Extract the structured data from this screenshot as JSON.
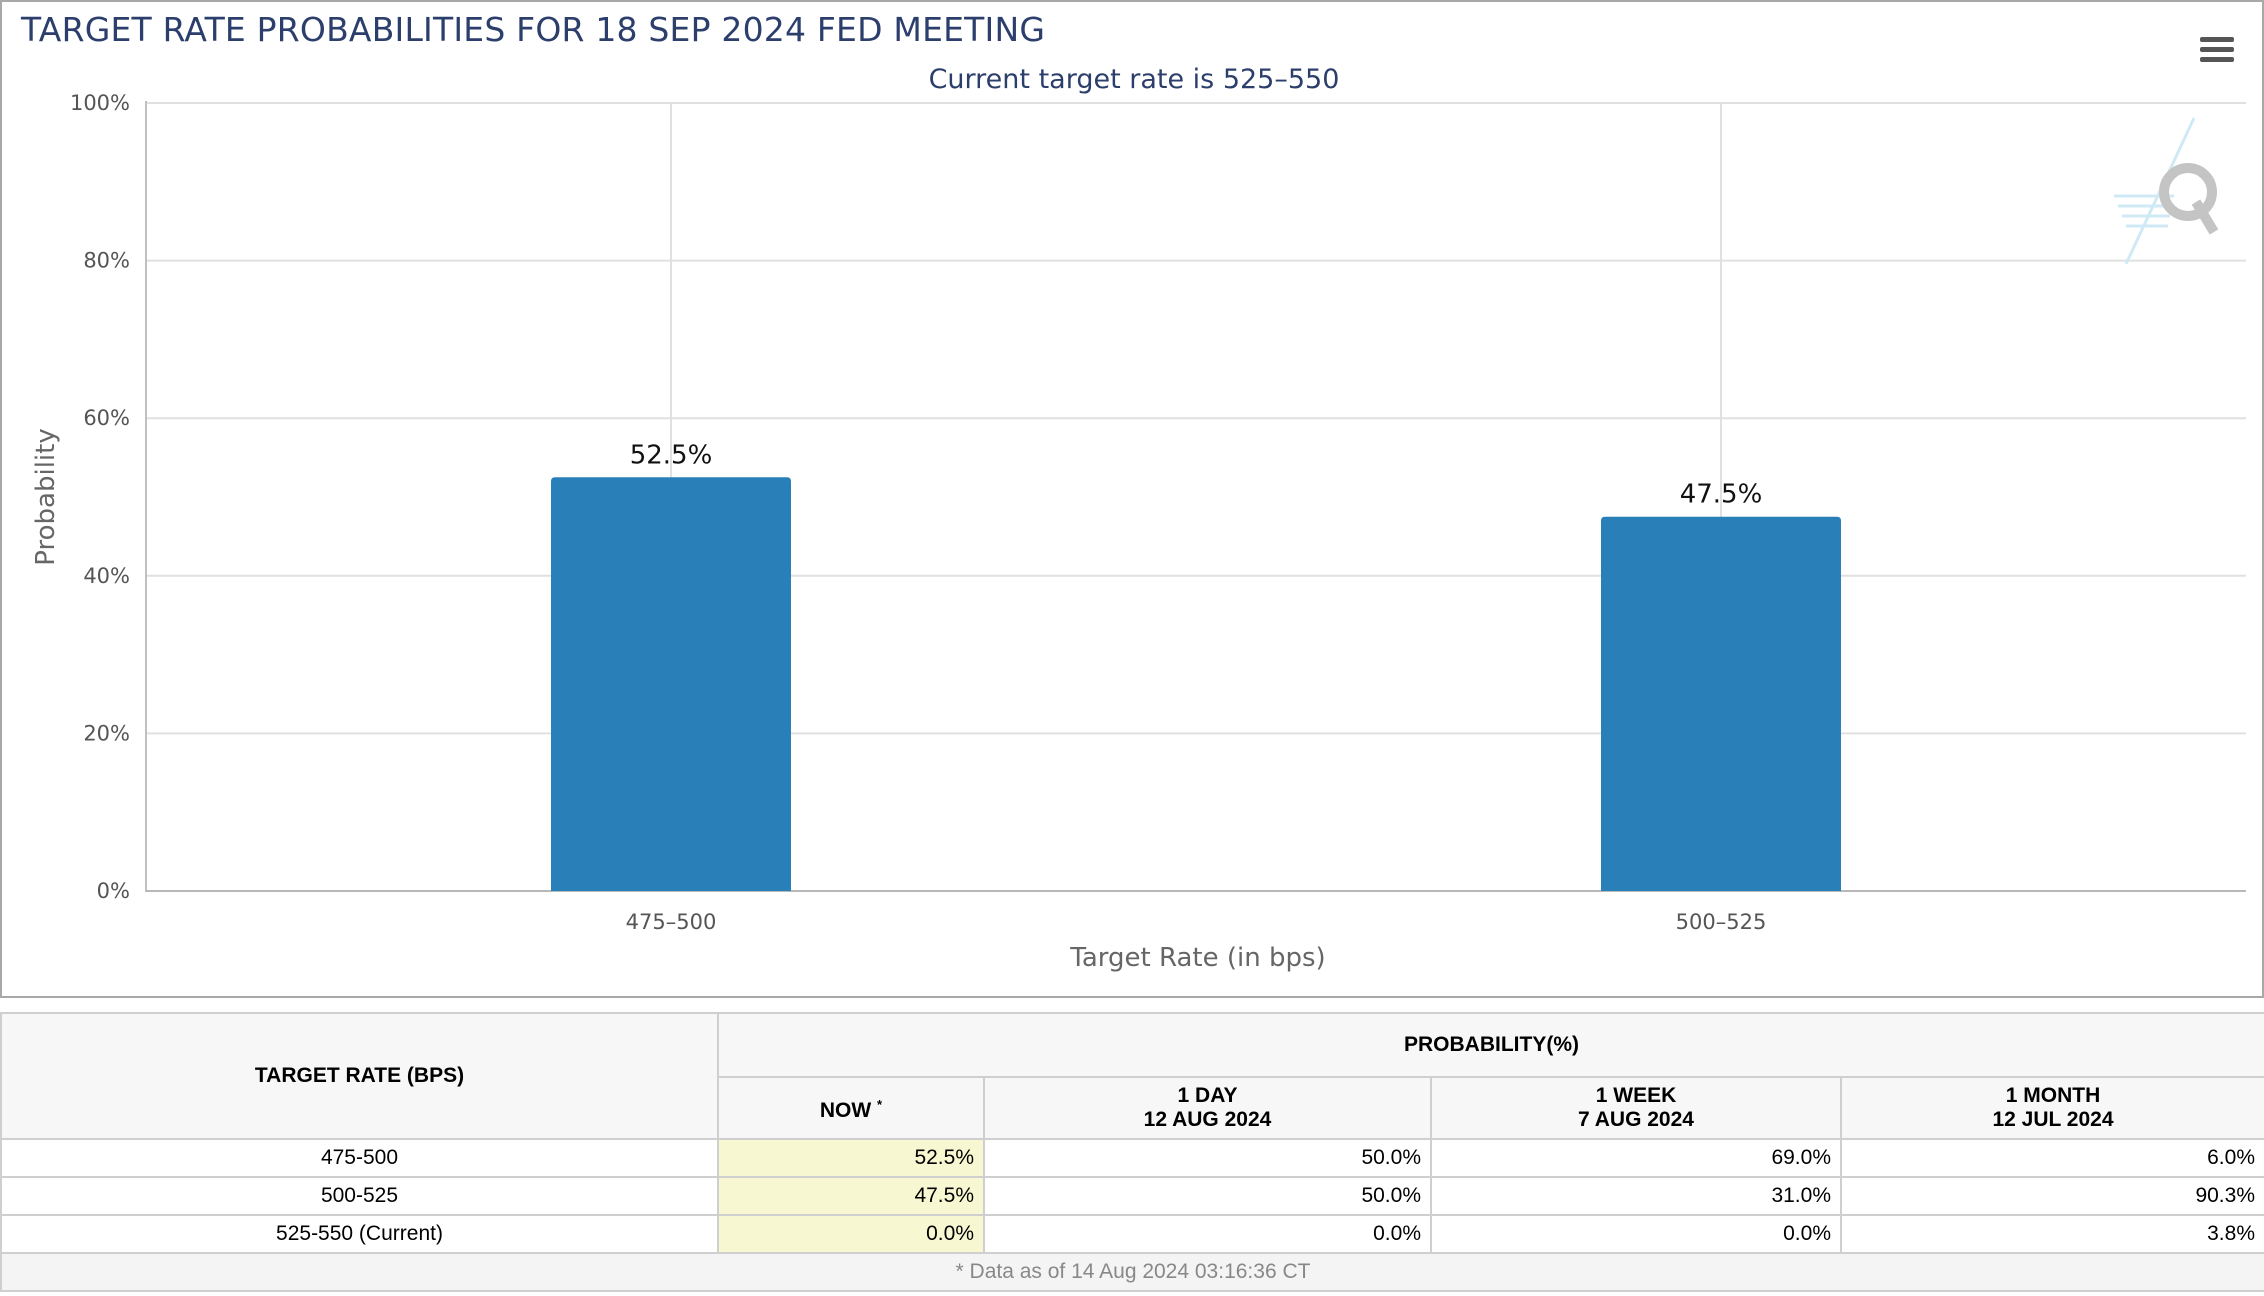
{
  "colors": {
    "bar": "#2980b9",
    "title": "#2c3e6b",
    "now_highlight": "#f7f7d2"
  },
  "toolbar": {
    "menu_icon": "hamburger-menu-icon"
  },
  "chart_data": {
    "type": "bar",
    "title": "TARGET RATE PROBABILITIES FOR 18 SEP 2024 FED MEETING",
    "subtitle": "Current target rate is 525–550",
    "xlabel": "Target Rate (in bps)",
    "ylabel": "Probability",
    "categories": [
      "475–500",
      "500–525"
    ],
    "values": [
      52.5,
      47.5
    ],
    "data_labels": [
      "52.5%",
      "47.5%"
    ],
    "ylim": [
      0,
      100
    ],
    "yticks": [
      {
        "value": 0,
        "label": "0%"
      },
      {
        "value": 20,
        "label": "20%"
      },
      {
        "value": 40,
        "label": "40%"
      },
      {
        "value": 60,
        "label": "60%"
      },
      {
        "value": 80,
        "label": "80%"
      },
      {
        "value": 100,
        "label": "100%"
      }
    ],
    "grid": true,
    "legend": "none"
  },
  "table": {
    "col_rate_header": "TARGET RATE (BPS)",
    "group_header": "PROBABILITY(%)",
    "now_header": "NOW",
    "now_marker": "*",
    "day_header": "1 DAY",
    "day_date": "12 AUG 2024",
    "week_header": "1 WEEK",
    "week_date": "7 AUG 2024",
    "month_header": "1 MONTH",
    "month_date": "12 JUL 2024",
    "rows": [
      {
        "rate": "475-500",
        "now": "52.5%",
        "day": "50.0%",
        "week": "69.0%",
        "month": "6.0%"
      },
      {
        "rate": "500-525",
        "now": "47.5%",
        "day": "50.0%",
        "week": "31.0%",
        "month": "90.3%"
      },
      {
        "rate": "525-550 (Current)",
        "now": "0.0%",
        "day": "0.0%",
        "week": "0.0%",
        "month": "3.8%"
      }
    ],
    "footnote": "* Data as of 14 Aug 2024 03:16:36 CT"
  }
}
